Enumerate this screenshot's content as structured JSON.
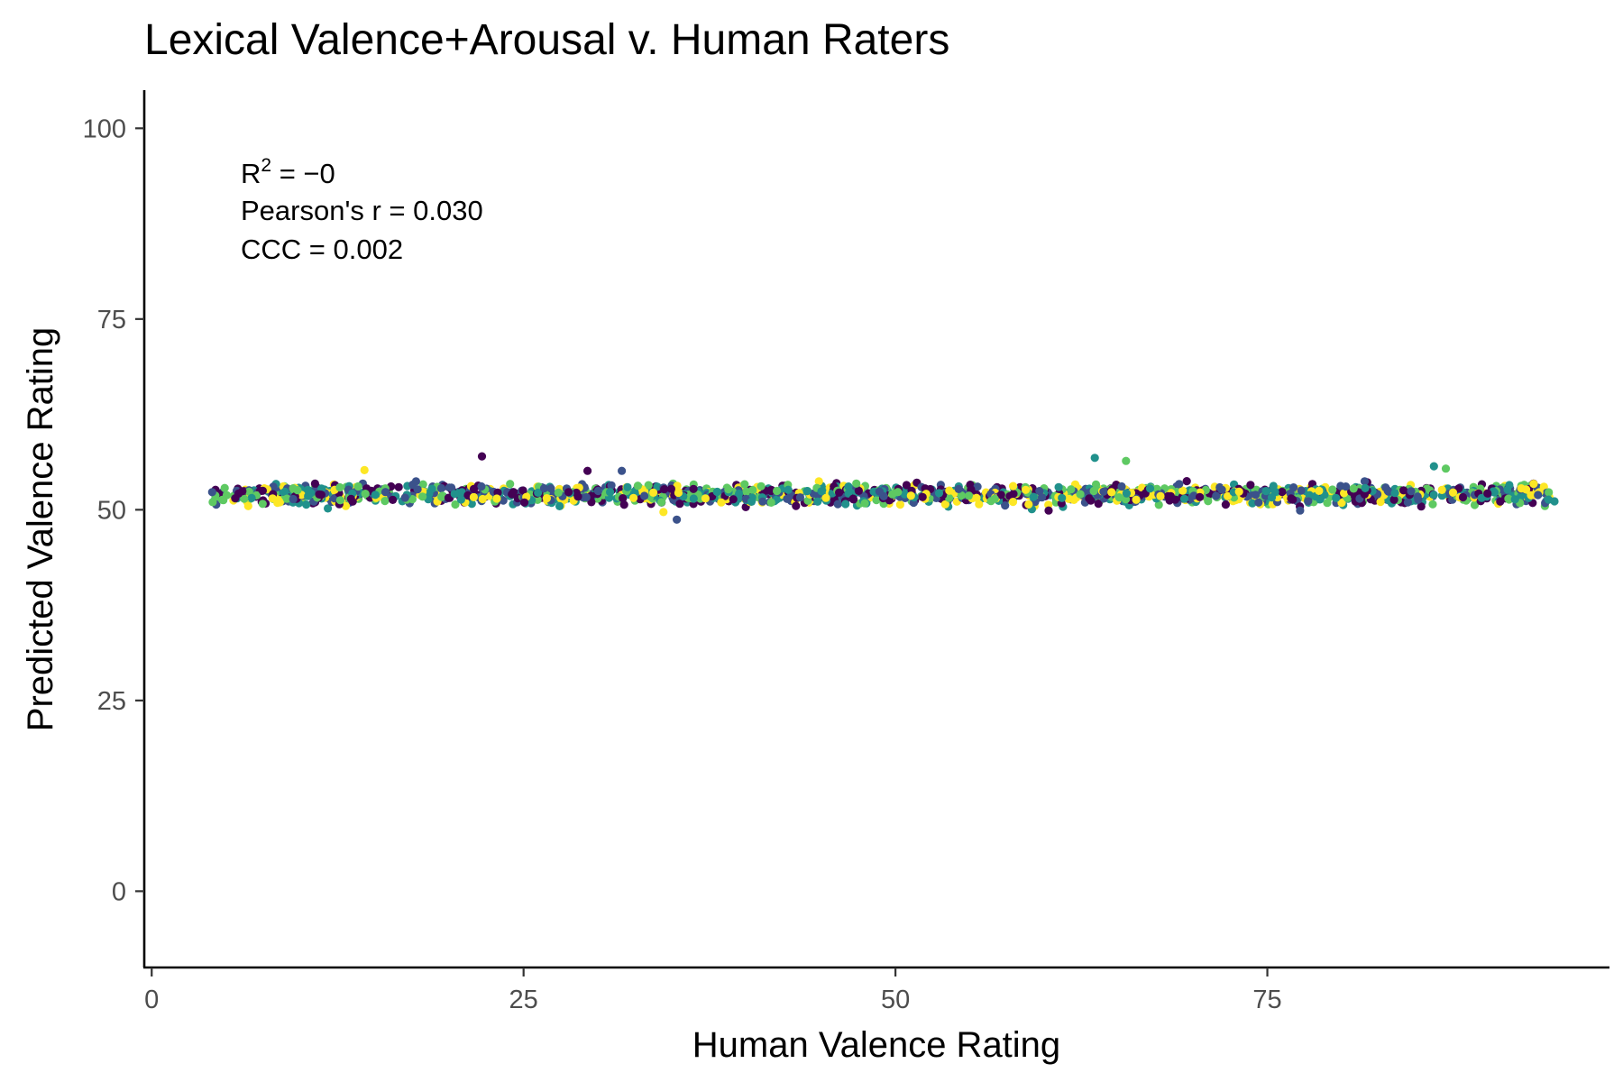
{
  "chart_data": {
    "type": "scatter",
    "title": "Lexical Valence+Arousal v. Human Raters",
    "xlabel": "Human Valence Rating",
    "ylabel": "Predicted Valence Rating",
    "xlim": [
      -0.5,
      98
    ],
    "ylim": [
      -10,
      105
    ],
    "x_ticks": [
      0,
      25,
      50,
      75
    ],
    "y_ticks": [
      0,
      25,
      50,
      75,
      100
    ],
    "grid": false,
    "legend": "none",
    "annotations": {
      "r2_base": "R",
      "r2_sup": "2",
      "r2_rest": " = −0",
      "pearson": "Pearson's r = 0.030",
      "ccc": "CCC = 0.002"
    },
    "colors": [
      "#440154",
      "#3b528b",
      "#21918c",
      "#5ec962",
      "#fde725"
    ],
    "point_cloud": {
      "x_range": [
        4,
        94
      ],
      "y_center": 52.0,
      "y_spread": 0.9,
      "count": 1700
    },
    "outliers": [
      {
        "x": 22.2,
        "y": 57.0
      },
      {
        "x": 35.3,
        "y": 48.7
      },
      {
        "x": 63.4,
        "y": 56.8
      },
      {
        "x": 65.5,
        "y": 56.4
      },
      {
        "x": 14.3,
        "y": 55.2
      },
      {
        "x": 29.3,
        "y": 55.1
      },
      {
        "x": 31.6,
        "y": 55.1
      },
      {
        "x": 86.2,
        "y": 55.7
      },
      {
        "x": 87.0,
        "y": 55.4
      },
      {
        "x": 34.4,
        "y": 49.7
      },
      {
        "x": 60.3,
        "y": 49.9
      },
      {
        "x": 77.2,
        "y": 49.9
      },
      {
        "x": 94.3,
        "y": 51.1
      },
      {
        "x": 4.1,
        "y": 51.0
      },
      {
        "x": 92.9,
        "y": 53.4
      }
    ]
  }
}
